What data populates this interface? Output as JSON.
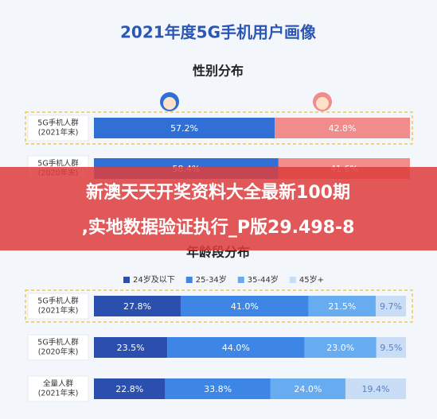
{
  "title": "2021年度5G手机用户画像",
  "banner": {
    "lines": [
      "新澳天天开奖资料大全最新100期",
      ",实地数据验证执行_P版29.498-8"
    ]
  },
  "chart_data": [
    {
      "type": "stacked-bar-h",
      "title": "性别分布",
      "categories": [
        [
          "5G手机人群",
          "(2021年末)"
        ],
        [
          "5G手机人群",
          "(2020年末)"
        ]
      ],
      "highlight": 0,
      "series": [
        {
          "color": "#2f6fd6",
          "label_color": "#ffffff",
          "values": [
            57.2,
            58.4
          ],
          "value_labels": [
            "57.2%",
            "58.4%"
          ]
        },
        {
          "color": "#f08c8c",
          "label_color": "#ffffff",
          "values": [
            42.8,
            41.6
          ],
          "value_labels": [
            "42.8%",
            "41.6%"
          ]
        }
      ]
    },
    {
      "type": "stacked-bar-h",
      "title": "年龄段分布",
      "categories": [
        [
          "5G手机人群",
          "(2021年末)"
        ],
        [
          "5G手机人群",
          "(2020年末)"
        ],
        [
          "全量人群",
          "(2021年末)"
        ]
      ],
      "highlight": 0,
      "series": [
        {
          "name": "24岁及以下",
          "color": "#2b4fae",
          "label_color": "#ffffff",
          "values": [
            27.8,
            23.5,
            22.8
          ],
          "value_labels": [
            "27.8%",
            "23.5%",
            "22.8%"
          ]
        },
        {
          "name": "25-34岁",
          "color": "#3d86e6",
          "label_color": "#ffffff",
          "values": [
            41.0,
            44.0,
            33.8
          ],
          "value_labels": [
            "41.0%",
            "44.0%",
            "33.8%"
          ]
        },
        {
          "name": "35-44岁",
          "color": "#67abf0",
          "label_color": "#ffffff",
          "values": [
            21.5,
            23.0,
            24.0
          ],
          "value_labels": [
            "21.5%",
            "23.0%",
            "24.0%"
          ]
        },
        {
          "name": "45岁+",
          "color": "#c9def6",
          "label_color": "#5b7fc0",
          "values": [
            9.7,
            9.5,
            19.4
          ],
          "value_labels": [
            "9.7%",
            "9.5%",
            "19.4%"
          ]
        }
      ]
    }
  ]
}
